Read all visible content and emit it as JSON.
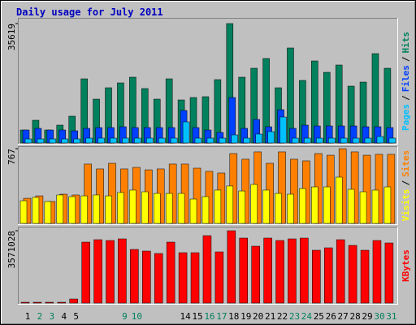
{
  "title": "Daily usage for July 2011",
  "legend_separator": "/",
  "chart_data": [
    {
      "type": "bar",
      "ylim": [
        0,
        35619
      ],
      "yticks": [
        35619
      ],
      "series": [
        {
          "name": "Hits",
          "color": "#00805c",
          "values": [
            3877,
            6785,
            3877,
            5331,
            7996,
            19142,
            13084,
            16477,
            17931,
            19627,
            16235,
            13084,
            19142,
            12842,
            13569,
            13811,
            18900,
            35619,
            19627,
            22292,
            25200,
            16477,
            28350,
            18658,
            24473,
            21080,
            23261,
            16961,
            18173,
            26654,
            22292
          ]
        },
        {
          "name": "Files",
          "color": "#0040ff",
          "values": [
            3877,
            4361,
            3877,
            3877,
            3635,
            4361,
            4604,
            4604,
            4846,
            4604,
            4604,
            4604,
            4604,
            9692,
            4604,
            3877,
            3150,
            13569,
            4361,
            7027,
            4846,
            9934,
            4361,
            5331,
            5088,
            5088,
            5088,
            5088,
            4846,
            4846,
            4604
          ]
        },
        {
          "name": "Pages",
          "color": "#00c0ff",
          "values": [
            1212,
            1212,
            1212,
            1212,
            1212,
            1454,
            1454,
            1454,
            1454,
            1454,
            1454,
            1454,
            1454,
            6300,
            1454,
            1454,
            1454,
            2423,
            1454,
            2665,
            3392,
            7754,
            1454,
            1454,
            1454,
            1454,
            1454,
            1454,
            1454,
            1938,
            1454
          ]
        }
      ]
    },
    {
      "type": "bar",
      "ylim": [
        0,
        767
      ],
      "yticks": [
        767
      ],
      "series": [
        {
          "name": "Sites",
          "color": "#ff8000",
          "values": [
            258,
            283,
            225,
            300,
            292,
            609,
            559,
            617,
            559,
            575,
            550,
            559,
            609,
            609,
            567,
            534,
            517,
            717,
            659,
            734,
            617,
            734,
            659,
            642,
            717,
            700,
            767,
            734,
            700,
            709,
            709
          ]
        },
        {
          "name": "Visits",
          "color": "#ffff00",
          "values": [
            233,
            267,
            225,
            292,
            275,
            283,
            292,
            283,
            317,
            342,
            325,
            308,
            308,
            308,
            250,
            275,
            342,
            384,
            333,
            400,
            342,
            308,
            300,
            358,
            375,
            375,
            475,
            350,
            325,
            342,
            375
          ]
        }
      ]
    },
    {
      "type": "bar",
      "ylim": [
        0,
        3571028
      ],
      "yticks": [
        3571028
      ],
      "categories": [
        "1",
        "2",
        "3",
        "4",
        "5",
        null,
        null,
        null,
        "9",
        "10",
        null,
        null,
        null,
        "14",
        "15",
        "16",
        "17",
        "18",
        "19",
        "20",
        "21",
        "22",
        "23",
        "24",
        "25",
        "26",
        "27",
        "28",
        "29",
        "30",
        "31"
      ],
      "category_colors": [
        "#000000",
        "#00805c",
        "#00805c",
        "#000000",
        "#000000",
        "#000000",
        "#000000",
        "#000000",
        "#00805c",
        "#00805c",
        "#000000",
        "#000000",
        "#000000",
        "#000000",
        "#000000",
        "#00805c",
        "#00805c",
        "#000000",
        "#000000",
        "#000000",
        "#000000",
        "#000000",
        "#00805c",
        "#00805c",
        "#000000",
        "#000000",
        "#000000",
        "#000000",
        "#000000",
        "#00805c",
        "#00805c"
      ],
      "series": [
        {
          "name": "KBytes",
          "color": "#ff0000",
          "values": [
            40124,
            40124,
            40124,
            40124,
            200620,
            3009300,
            3129672,
            3089548,
            3169796,
            2648184,
            2567936,
            2447564,
            3009300,
            2487688,
            2487688,
            3330292,
            2527812,
            3571028,
            3209920,
            2808680,
            3209920,
            3089548,
            3169796,
            3209920,
            2608060,
            2728432,
            3129672,
            2848804,
            2608060,
            3089548,
            2969176
          ]
        }
      ]
    }
  ]
}
